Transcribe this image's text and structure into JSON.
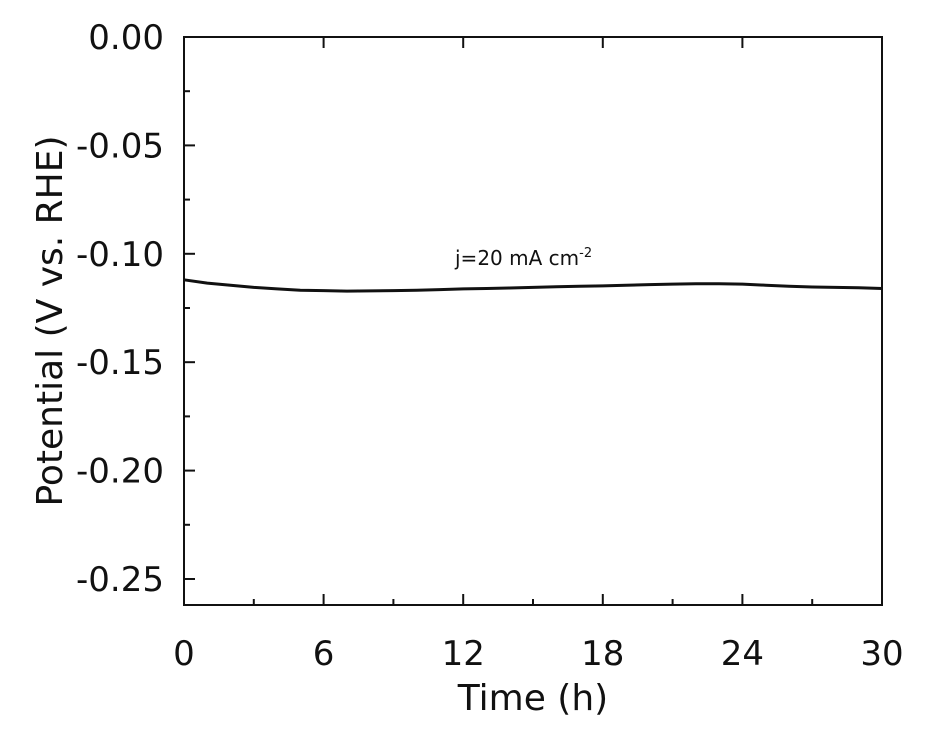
{
  "chart_data": {
    "type": "line",
    "xlabel": "Time (h)",
    "ylabel": "Potential (V vs. RHE)",
    "xlim": [
      0,
      30
    ],
    "ylim": [
      -0.262,
      0.0
    ],
    "x_ticks": [
      0,
      6,
      12,
      18,
      24,
      30
    ],
    "x_tick_labels": [
      "0",
      "6",
      "12",
      "18",
      "24",
      "30"
    ],
    "y_ticks": [
      0.0,
      -0.05,
      -0.1,
      -0.15,
      -0.2,
      -0.25
    ],
    "y_tick_labels": [
      "0.00",
      "-0.05",
      "-0.10",
      "-0.15",
      "-0.20",
      "-0.25"
    ],
    "grid": false,
    "annotation": {
      "text_main": "j=20 mA cm",
      "text_sup": "-2"
    },
    "series": [
      {
        "color": "#111111",
        "x": [
          0,
          1,
          2,
          3,
          4,
          5,
          6,
          7,
          8,
          9,
          10,
          11,
          12,
          13,
          14,
          15,
          16,
          17,
          18,
          19,
          20,
          21,
          22,
          23,
          24,
          25,
          26,
          27,
          28,
          29,
          30
        ],
        "y": [
          -0.112,
          -0.1135,
          -0.1145,
          -0.1155,
          -0.1162,
          -0.1168,
          -0.117,
          -0.1172,
          -0.1171,
          -0.117,
          -0.1168,
          -0.1165,
          -0.1162,
          -0.116,
          -0.1158,
          -0.1155,
          -0.1152,
          -0.115,
          -0.1148,
          -0.1145,
          -0.1142,
          -0.114,
          -0.1138,
          -0.1138,
          -0.114,
          -0.1145,
          -0.115,
          -0.1153,
          -0.1155,
          -0.1157,
          -0.116
        ]
      }
    ]
  }
}
